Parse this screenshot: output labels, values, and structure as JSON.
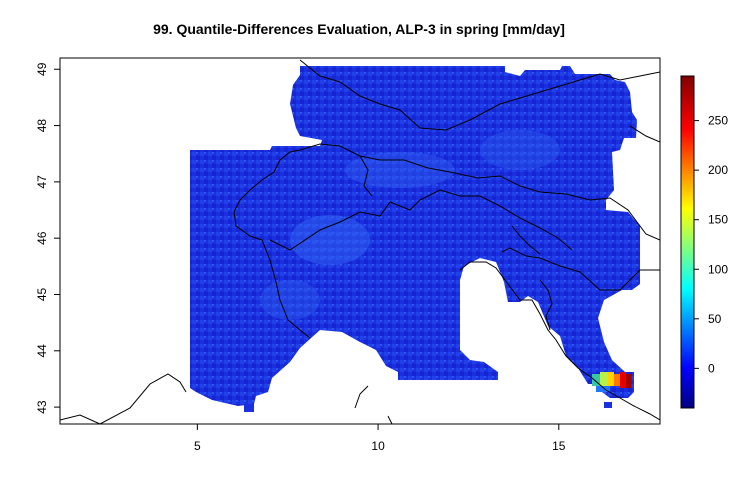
{
  "title": "99. Quantile-Differences Evaluation, ALP-3 in spring [mm/day]",
  "map": {
    "x_ticks": [
      5,
      10,
      15
    ],
    "y_ticks": [
      43,
      44,
      45,
      46,
      47,
      48,
      49
    ],
    "lon_range": [
      1.2,
      17.8
    ],
    "lat_range": [
      42.7,
      49.2
    ]
  },
  "colorbar": {
    "ticks": [
      0,
      50,
      100,
      150,
      200,
      250
    ],
    "range": [
      -40,
      295
    ],
    "colors": [
      "#000080",
      "#0000ff",
      "#0080ff",
      "#00ffff",
      "#80ff80",
      "#ffff00",
      "#ff8000",
      "#ff0000",
      "#800000"
    ]
  },
  "colors": {
    "field_dark": "#1a2bd9",
    "field_light": "#2f5ff0",
    "border_lines": "#000000"
  }
}
